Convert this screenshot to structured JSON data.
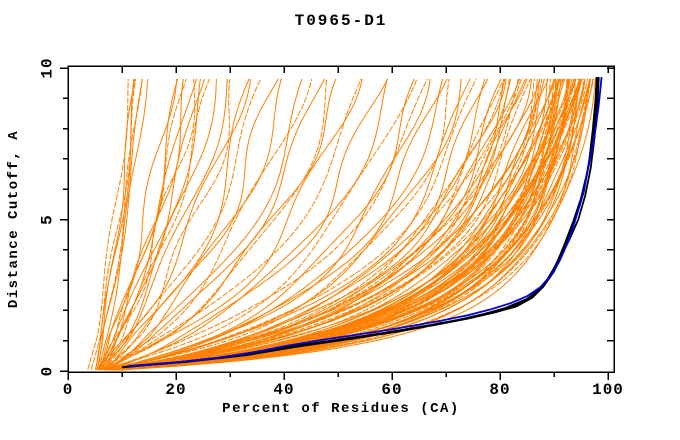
{
  "title": "T0965-D1",
  "colors": {
    "background": "#ffffff",
    "frame": "#000000",
    "text": "#000000",
    "orange_models": "#ff8000",
    "black_models": "#000000",
    "blue_model": "#0000dd"
  },
  "chart_data": {
    "type": "line",
    "title": "T0965-D1",
    "xlabel": "Percent of Residues (CA)",
    "ylabel": "Distance Cutoff, A",
    "xlim": [
      0,
      101.3
    ],
    "ylim": [
      0,
      10.07
    ],
    "x_major_ticks": [
      0,
      20,
      40,
      60,
      80,
      100
    ],
    "x_major_tick_labels": [
      "0",
      "20",
      "40",
      "60",
      "80",
      "100"
    ],
    "x_minor_ticks": [
      10,
      30,
      50,
      70,
      90
    ],
    "top_ticks": [
      10,
      20,
      30,
      40,
      50,
      60,
      70,
      80,
      90,
      100
    ],
    "y_major_ticks": [
      0,
      5,
      10
    ],
    "y_major_tick_labels": [
      "0",
      "5",
      "10"
    ],
    "y_minor_ticks": [
      1,
      2,
      3,
      4,
      6,
      7,
      8,
      9
    ],
    "right_ticks": [
      1,
      2,
      3,
      4,
      5,
      6,
      7,
      8,
      9,
      10
    ],
    "grid": false,
    "legend": "none",
    "curve_ymax": 9.7,
    "ensemble_model": "orange curves estimated as x(y) = s + (r-s)*(y*(Y+c))/(Y*(y+c)) + amp*sin(freq*y+phase)*min(1,y/1.2), with Y=9.7; params per curve: [s,r,c,amp,freq,phase]; s = percent at cutoff 0, r = percent at cutoff 9.7",
    "orange_model_count": 116,
    "orange_model_params": [
      [
        6,
        97.6,
        1.0,
        0.5,
        0.9,
        0.5
      ],
      [
        7,
        97.2,
        1.1,
        0.5,
        1.1,
        1.2
      ],
      [
        6.5,
        96.9,
        1.2,
        0.6,
        0.8,
        2.1
      ],
      [
        5.5,
        96.6,
        1.05,
        0.5,
        1.3,
        0.3
      ],
      [
        7.2,
        96.3,
        1.3,
        0.7,
        0.7,
        1.8
      ],
      [
        6.8,
        96.0,
        1.15,
        0.5,
        1.0,
        2.6
      ],
      [
        5.8,
        96.8,
        1.25,
        0.5,
        1.2,
        3.1
      ],
      [
        6.2,
        97.4,
        1.1,
        0.4,
        0.9,
        4.0
      ],
      [
        5.2,
        95.8,
        1.2,
        0.9,
        0.8,
        0.2
      ],
      [
        6.1,
        95.5,
        1.3,
        0.8,
        1.0,
        1.0
      ],
      [
        7.0,
        95.2,
        1.4,
        1.1,
        0.6,
        2.0
      ],
      [
        5.8,
        95.0,
        1.25,
        0.9,
        1.2,
        3.0
      ],
      [
        6.5,
        94.8,
        1.5,
        1.0,
        0.9,
        4.0
      ],
      [
        7.4,
        94.5,
        1.35,
        0.7,
        1.1,
        5.0
      ],
      [
        5.5,
        94.2,
        1.6,
        1.2,
        0.7,
        0.6
      ],
      [
        6.9,
        94.0,
        1.3,
        0.8,
        1.3,
        1.6
      ],
      [
        7.8,
        93.8,
        1.7,
        1.0,
        0.8,
        2.6
      ],
      [
        5.9,
        93.5,
        1.45,
        1.1,
        1.0,
        3.6
      ],
      [
        6.4,
        93.2,
        1.8,
        0.9,
        1.2,
        4.6
      ],
      [
        7.1,
        93.0,
        1.5,
        1.0,
        0.9,
        5.6
      ],
      [
        5.3,
        92.8,
        1.9,
        0.8,
        1.1,
        0.9
      ],
      [
        6.7,
        92.5,
        1.55,
        1.2,
        0.7,
        1.9
      ],
      [
        7.6,
        92.2,
        1.65,
        0.9,
        1.2,
        2.9
      ],
      [
        5.6,
        92.0,
        1.45,
        1.0,
        0.8,
        3.9
      ],
      [
        6.2,
        91.8,
        1.85,
        1.1,
        1.0,
        4.9
      ],
      [
        7.3,
        91.5,
        1.6,
        0.7,
        1.3,
        5.9
      ],
      [
        5.4,
        91.2,
        1.95,
        1.0,
        0.9,
        1.3
      ],
      [
        6.8,
        91.0,
        1.7,
        0.9,
        1.1,
        2.3
      ],
      [
        7.7,
        90.8,
        1.8,
        1.0,
        0.7,
        3.3
      ],
      [
        5.7,
        90.5,
        1.5,
        1.1,
        1.2,
        4.3
      ],
      [
        6.3,
        90.2,
        1.9,
        0.8,
        0.9,
        5.3
      ],
      [
        7.2,
        90.0,
        1.75,
        1.0,
        1.0,
        0.4
      ],
      [
        5.5,
        95.6,
        1.25,
        0.6,
        1.1,
        1.4
      ],
      [
        6.6,
        95.3,
        1.35,
        0.9,
        0.8,
        2.4
      ],
      [
        7.5,
        94.9,
        1.5,
        1.0,
        1.2,
        3.4
      ],
      [
        5.8,
        94.6,
        1.3,
        0.8,
        0.9,
        4.4
      ],
      [
        6.1,
        94.3,
        1.6,
        1.0,
        1.1,
        5.4
      ],
      [
        7.0,
        94.1,
        1.4,
        1.1,
        0.7,
        0.8
      ],
      [
        5.2,
        93.9,
        1.75,
        0.9,
        1.3,
        1.8
      ],
      [
        6.9,
        93.6,
        1.55,
        1.1,
        0.8,
        2.8
      ],
      [
        7.4,
        93.3,
        1.35,
        0.7,
        1.0,
        3.8
      ],
      [
        5.6,
        93.1,
        1.7,
        1.0,
        1.2,
        4.8
      ],
      [
        6.5,
        92.6,
        1.95,
        1.2,
        0.9,
        5.8
      ],
      [
        7.1,
        92.3,
        1.5,
        0.8,
        1.1,
        1.1
      ],
      [
        5.9,
        91.9,
        1.85,
        1.1,
        0.8,
        2.2
      ],
      [
        6.4,
        91.6,
        1.6,
        0.9,
        1.0,
        3.2
      ],
      [
        5.4,
        89.8,
        1.8,
        1.4,
        0.8,
        0.5
      ],
      [
        6.6,
        89.4,
        2.0,
        1.1,
        1.0,
        1.5
      ],
      [
        7.3,
        89.0,
        1.85,
        1.3,
        1.2,
        2.5
      ],
      [
        5.8,
        88.6,
        2.2,
        1.0,
        0.7,
        3.5
      ],
      [
        6.2,
        88.2,
        1.95,
        1.5,
        0.9,
        4.5
      ],
      [
        7.0,
        87.8,
        2.4,
        0.9,
        1.1,
        5.5
      ],
      [
        5.5,
        87.4,
        2.05,
        1.2,
        1.0,
        0.7
      ],
      [
        6.8,
        87.0,
        2.3,
        1.4,
        0.8,
        1.7
      ],
      [
        7.6,
        86.5,
        2.5,
        1.0,
        1.2,
        2.7
      ],
      [
        5.7,
        86.0,
        2.1,
        1.3,
        0.9,
        3.7
      ],
      [
        6.3,
        85.5,
        2.6,
        1.1,
        1.1,
        4.7
      ],
      [
        7.2,
        85.0,
        2.25,
        1.5,
        0.7,
        5.7
      ],
      [
        5.3,
        84.5,
        2.7,
        1.0,
        1.0,
        1.2
      ],
      [
        6.7,
        84.0,
        2.35,
        1.2,
        1.2,
        2.2
      ],
      [
        7.5,
        83.5,
        2.55,
        1.4,
        0.8,
        3.2
      ],
      [
        5.9,
        83.0,
        2.15,
        1.1,
        1.0,
        4.2
      ],
      [
        6.1,
        82.5,
        2.65,
        1.3,
        0.9,
        5.2
      ],
      [
        7.1,
        82.0,
        2.4,
        1.0,
        1.1,
        0.3
      ],
      [
        5.6,
        81.5,
        2.8,
        1.2,
        0.8,
        1.4
      ],
      [
        6.9,
        81.0,
        2.45,
        1.4,
        1.0,
        2.4
      ],
      [
        7.4,
        80.5,
        2.9,
        1.1,
        1.2,
        3.4
      ],
      [
        5.2,
        80.2,
        2.3,
        1.3,
        0.9,
        4.4
      ],
      [
        6.0,
        89.1,
        1.8,
        1.0,
        1.1,
        5.4
      ],
      [
        6.5,
        88.9,
        1.9,
        1.2,
        0.7,
        0.9
      ],
      [
        5.5,
        79.5,
        2.5,
        1.5,
        0.8,
        0.6
      ],
      [
        6.8,
        78.5,
        2.8,
        1.2,
        1.0,
        1.6
      ],
      [
        7.2,
        77.0,
        2.6,
        1.4,
        1.1,
        2.6
      ],
      [
        5.8,
        76.0,
        3.1,
        1.1,
        0.9,
        3.6
      ],
      [
        6.3,
        75.0,
        2.9,
        1.6,
        0.8,
        4.6
      ],
      [
        7.0,
        73.5,
        3.4,
        1.2,
        1.1,
        5.6
      ],
      [
        5.4,
        72.0,
        2.7,
        1.4,
        1.0,
        1.0
      ],
      [
        6.6,
        70.5,
        3.5,
        1.1,
        0.9,
        2.0
      ],
      [
        7.4,
        69.0,
        3.2,
        1.5,
        1.1,
        3.0
      ],
      [
        5.7,
        67.5,
        4.5,
        1.2,
        0.8,
        4.1
      ],
      [
        6.2,
        66.0,
        3.0,
        1.4,
        1.0,
        5.1
      ],
      [
        6.9,
        65.0,
        3.6,
        1.1,
        1.2,
        0.2
      ],
      [
        5.3,
        63.0,
        4.0,
        1.8,
        0.7,
        0.8
      ],
      [
        6.5,
        60.5,
        5.0,
        1.4,
        0.9,
        1.9
      ],
      [
        7.1,
        58.0,
        4.5,
        1.6,
        1.1,
        2.9
      ],
      [
        5.6,
        55.5,
        6.0,
        1.3,
        0.8,
        3.9
      ],
      [
        6.1,
        53.0,
        5.2,
        1.7,
        1.0,
        4.9
      ],
      [
        6.8,
        51.0,
        7.5,
        1.3,
        1.2,
        5.9
      ],
      [
        5.2,
        49.0,
        4.8,
        1.5,
        0.9,
        1.5
      ],
      [
        6.4,
        47.0,
        6.8,
        1.2,
        1.1,
        2.5
      ],
      [
        7.3,
        45.0,
        8.0,
        1.6,
        0.8,
        3.5
      ],
      [
        5.5,
        43.5,
        7.0,
        1.8,
        0.8,
        0.4
      ],
      [
        6.7,
        41.0,
        9.0,
        1.4,
        1.0,
        1.3
      ],
      [
        5.9,
        38.5,
        7.5,
        1.6,
        1.1,
        2.3
      ],
      [
        6.3,
        36.5,
        11.0,
        1.3,
        0.9,
        3.3
      ],
      [
        7.0,
        34.5,
        8.0,
        1.7,
        0.8,
        4.3
      ],
      [
        5.4,
        33.0,
        13.0,
        1.3,
        1.0,
        5.3
      ],
      [
        6.6,
        31.5,
        9.5,
        1.5,
        1.1,
        0.1
      ],
      [
        5.8,
        30.0,
        12.0,
        1.2,
        0.9,
        1.1
      ],
      [
        5.6,
        27.5,
        12.0,
        1.2,
        0.9,
        0.7
      ],
      [
        6.4,
        26.5,
        15.0,
        0.9,
        1.1,
        1.7
      ],
      [
        5.2,
        25.5,
        13.0,
        1.1,
        0.8,
        2.7
      ],
      [
        6.9,
        24.8,
        18.0,
        0.8,
        1.0,
        3.7
      ],
      [
        5.7,
        24.0,
        14.0,
        1.2,
        1.2,
        4.7
      ],
      [
        6.2,
        23.2,
        20.0,
        0.9,
        0.8,
        5.7
      ],
      [
        5.4,
        22.5,
        13.5,
        1.1,
        1.0,
        1.2
      ],
      [
        6.6,
        21.8,
        23.0,
        0.8,
        1.1,
        2.2
      ],
      [
        5.9,
        21.0,
        16.0,
        1.0,
        0.9,
        3.2
      ],
      [
        6.1,
        19.5,
        25.0,
        0.9,
        1.1,
        4.2
      ],
      [
        3.6,
        11.5,
        18.0,
        0.5,
        1.0,
        0.5
      ],
      [
        5.3,
        12.2,
        25.0,
        0.4,
        1.2,
        1.5
      ],
      [
        5.0,
        12.8,
        20.0,
        0.6,
        0.9,
        2.5
      ],
      [
        5.6,
        13.4,
        30.0,
        0.4,
        1.1,
        3.5
      ],
      [
        5.1,
        14.0,
        22.0,
        0.5,
        0.8,
        4.5
      ],
      [
        5.8,
        14.6,
        35.0,
        0.4,
        1.0,
        5.5
      ],
      [
        4.2,
        13.0,
        24.0,
        0.5,
        1.1,
        0.9
      ]
    ],
    "black_model_count": 4,
    "black_model_points": [
      [
        [
          10,
          0.12
        ],
        [
          20,
          0.28
        ],
        [
          30,
          0.48
        ],
        [
          40,
          0.78
        ],
        [
          50,
          1.02
        ],
        [
          60,
          1.28
        ],
        [
          68,
          1.52
        ],
        [
          74,
          1.73
        ],
        [
          79,
          1.93
        ],
        [
          83,
          2.13
        ],
        [
          86,
          2.42
        ],
        [
          88,
          2.78
        ],
        [
          90,
          3.28
        ],
        [
          91.5,
          3.85
        ],
        [
          93,
          4.4
        ],
        [
          94.5,
          5.0
        ],
        [
          95.8,
          5.8
        ],
        [
          96.8,
          6.7
        ],
        [
          97.5,
          7.7
        ],
        [
          98.0,
          8.6
        ],
        [
          98.3,
          9.7
        ]
      ],
      [
        [
          10.5,
          0.14
        ],
        [
          22,
          0.3
        ],
        [
          33,
          0.52
        ],
        [
          43,
          0.82
        ],
        [
          53,
          1.08
        ],
        [
          62,
          1.33
        ],
        [
          69,
          1.56
        ],
        [
          75,
          1.78
        ],
        [
          80,
          2.0
        ],
        [
          84,
          2.25
        ],
        [
          87,
          2.6
        ],
        [
          89,
          3.05
        ],
        [
          90.5,
          3.55
        ],
        [
          92,
          4.2
        ],
        [
          93.5,
          4.9
        ],
        [
          95,
          5.7
        ],
        [
          96.2,
          6.6
        ],
        [
          97.2,
          7.6
        ],
        [
          97.8,
          8.7
        ],
        [
          98.1,
          9.7
        ]
      ],
      [
        [
          10,
          0.13
        ],
        [
          19,
          0.26
        ],
        [
          28,
          0.44
        ],
        [
          38,
          0.72
        ],
        [
          48,
          0.98
        ],
        [
          58,
          1.24
        ],
        [
          66,
          1.48
        ],
        [
          72,
          1.68
        ],
        [
          77,
          1.88
        ],
        [
          81,
          2.08
        ],
        [
          85,
          2.38
        ],
        [
          87.5,
          2.72
        ],
        [
          89.5,
          3.2
        ],
        [
          91,
          3.75
        ],
        [
          92.5,
          4.35
        ],
        [
          94,
          5.05
        ],
        [
          95.5,
          5.9
        ],
        [
          96.5,
          6.9
        ],
        [
          97.2,
          8.0
        ],
        [
          97.7,
          9.0
        ],
        [
          97.9,
          9.7
        ]
      ],
      [
        [
          11,
          0.16
        ],
        [
          21,
          0.3
        ],
        [
          31,
          0.5
        ],
        [
          41,
          0.8
        ],
        [
          51,
          1.05
        ],
        [
          61,
          1.3
        ],
        [
          68.5,
          1.54
        ],
        [
          74.5,
          1.75
        ],
        [
          79.5,
          1.97
        ],
        [
          83.5,
          2.2
        ],
        [
          86.5,
          2.52
        ],
        [
          88.5,
          2.95
        ],
        [
          90.2,
          3.45
        ],
        [
          91.8,
          4.05
        ],
        [
          93.2,
          4.7
        ],
        [
          94.8,
          5.5
        ],
        [
          96,
          6.4
        ],
        [
          97,
          7.4
        ],
        [
          97.6,
          8.4
        ],
        [
          97.85,
          9.4
        ],
        [
          97.9,
          9.7
        ]
      ]
    ],
    "blue_model_points": [
      [
        11,
        0.15
      ],
      [
        16,
        0.22
      ],
      [
        22,
        0.32
      ],
      [
        28,
        0.44
      ],
      [
        34,
        0.6
      ],
      [
        40,
        0.82
      ],
      [
        46,
        1.0
      ],
      [
        52,
        1.16
      ],
      [
        58,
        1.32
      ],
      [
        64,
        1.5
      ],
      [
        69,
        1.66
      ],
      [
        74,
        1.84
      ],
      [
        78,
        2.02
      ],
      [
        82,
        2.24
      ],
      [
        85,
        2.47
      ],
      [
        87.5,
        2.77
      ],
      [
        89.5,
        3.17
      ],
      [
        91,
        3.62
      ],
      [
        92.5,
        4.22
      ],
      [
        93.8,
        4.9
      ],
      [
        95,
        5.6
      ],
      [
        96,
        6.4
      ],
      [
        96.9,
        7.2
      ],
      [
        97.7,
        8.0
      ],
      [
        98.3,
        8.8
      ],
      [
        98.7,
        9.5
      ],
      [
        98.8,
        9.7
      ]
    ]
  }
}
